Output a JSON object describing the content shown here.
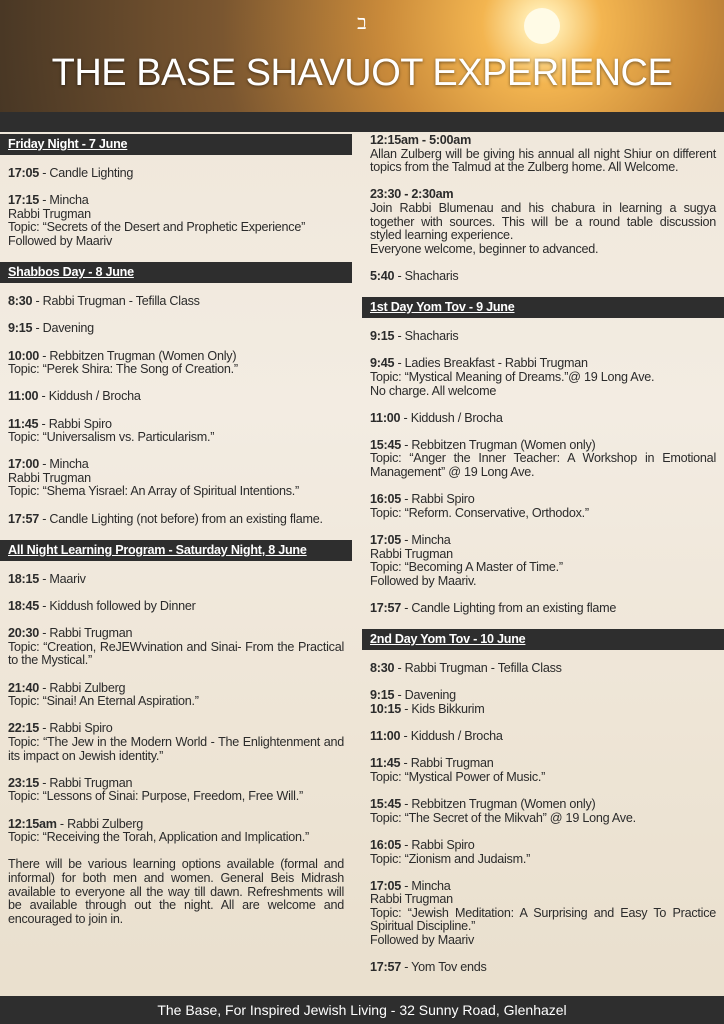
{
  "header": {
    "mark": "ב",
    "title": "THE BASE SHAVUOT EXPERIENCE"
  },
  "columns": [
    {
      "sections": [
        {
          "heading": "Friday Night - 7 June",
          "items": [
            {
              "lines": [
                {
                  "time": "17:05",
                  "text": " - Candle Lighting"
                }
              ]
            },
            {
              "lines": [
                {
                  "time": "17:15",
                  "text": " - Mincha"
                },
                {
                  "text": "Rabbi Trugman"
                },
                {
                  "text": "Topic: “Secrets of the Desert and Prophetic Experience”"
                },
                {
                  "text": "Followed by Maariv"
                }
              ]
            }
          ]
        },
        {
          "heading": "Shabbos Day - 8 June",
          "items": [
            {
              "lines": [
                {
                  "time": "8:30",
                  "text": " - Rabbi Trugman - Tefilla Class"
                }
              ]
            },
            {
              "lines": [
                {
                  "time": "9:15",
                  "text": " - Davening"
                }
              ]
            },
            {
              "lines": [
                {
                  "time": "10:00",
                  "text": " - Rebbitzen Trugman (Women Only)"
                },
                {
                  "text": "Topic: “Perek Shira: The Song of Creation.”"
                }
              ]
            },
            {
              "lines": [
                {
                  "time": "11:00",
                  "text": " - Kiddush / Brocha"
                }
              ]
            },
            {
              "lines": [
                {
                  "time": "11:45",
                  "text": " - Rabbi Spiro"
                },
                {
                  "text": "Topic: “Universalism vs. Particularism.”"
                }
              ]
            },
            {
              "lines": [
                {
                  "time": "17:00",
                  "text": " - Mincha"
                },
                {
                  "text": "Rabbi Trugman"
                },
                {
                  "text": "Topic: “Shema Yisrael: An Array of Spiritual Intentions.”"
                }
              ]
            },
            {
              "lines": [
                {
                  "time": "17:57",
                  "text": " - Candle Lighting (not before) from an existing flame."
                }
              ]
            }
          ]
        },
        {
          "heading": "All Night Learning Program - Saturday Night, 8 June",
          "items": [
            {
              "lines": [
                {
                  "time": "18:15",
                  "text": " - Maariv"
                }
              ]
            },
            {
              "lines": [
                {
                  "time": "18:45",
                  "text": " - Kiddush followed by Dinner"
                }
              ]
            },
            {
              "lines": [
                {
                  "time": "20:30",
                  "text": " - Rabbi Trugman"
                },
                {
                  "text": "Topic: “Creation, ReJEWvination and Sinai- From the Practical to the Mystical.”"
                }
              ]
            },
            {
              "lines": [
                {
                  "time": "21:40",
                  "text": " - Rabbi Zulberg"
                },
                {
                  "text": "Topic: “Sinai! An Eternal Aspiration.”"
                }
              ]
            },
            {
              "lines": [
                {
                  "time": "22:15",
                  "text": " - Rabbi Spiro"
                },
                {
                  "text": "Topic: “The Jew in the Modern World - The Enlightenment and its impact on Jewish identity.”"
                }
              ]
            },
            {
              "lines": [
                {
                  "time": "23:15",
                  "text": " - Rabbi Trugman"
                },
                {
                  "text": "Topic: “Lessons of Sinai: Purpose, Freedom, Free Will.”"
                }
              ]
            },
            {
              "lines": [
                {
                  "time": "12:15am",
                  "text": " - Rabbi Zulberg"
                },
                {
                  "text": "Topic: “Receiving the Torah, Application and Implication.”"
                }
              ]
            },
            {
              "lines": [
                {
                  "text": "There will be various learning options available (formal and informal) for both men and women. General Beis Midrash available to everyone all the way till dawn. Refreshments will be available through out the night. All are welcome and encouraged to join in."
                }
              ]
            }
          ]
        }
      ]
    },
    {
      "sections": [
        {
          "items": [
            {
              "lines": [
                {
                  "time": "12:15am - 5:00am"
                },
                {
                  "text": "Allan Zulberg will be giving his annual all night Shiur on different topics from the Talmud at the Zulberg home. All Welcome."
                }
              ]
            },
            {
              "lines": [
                {
                  "time": "23:30 - 2:30am"
                },
                {
                  "text": "Join Rabbi Blumenau and his chabura in learning a sugya together with sources. This will be a round table discussion styled learning experience."
                },
                {
                  "text": "Everyone welcome, beginner to advanced."
                }
              ]
            },
            {
              "lines": [
                {
                  "time": "5:40",
                  "text": " - Shacharis"
                }
              ]
            }
          ]
        },
        {
          "heading": "1st Day Yom Tov - 9 June",
          "items": [
            {
              "lines": [
                {
                  "time": "9:15",
                  "text": " - Shacharis"
                }
              ]
            },
            {
              "lines": [
                {
                  "time": "9:45",
                  "text": " - Ladies Breakfast - Rabbi Trugman"
                },
                {
                  "text": "Topic: “Mystical Meaning of Dreams.”@ 19 Long Ave."
                },
                {
                  "text": "No charge. All welcome"
                }
              ]
            },
            {
              "lines": [
                {
                  "time": "11:00",
                  "text": " - Kiddush / Brocha"
                }
              ]
            },
            {
              "lines": [
                {
                  "time": "15:45",
                  "text": " - Rebbitzen Trugman (Women only)"
                },
                {
                  "text": "Topic: “Anger the Inner Teacher: A Workshop in Emotional Management” @ 19 Long Ave."
                }
              ]
            },
            {
              "lines": [
                {
                  "time": "16:05",
                  "text": " - Rabbi Spiro"
                },
                {
                  "text": "Topic: “Reform. Conservative, Orthodox.”"
                }
              ]
            },
            {
              "lines": [
                {
                  "time": "17:05",
                  "text": " - Mincha"
                },
                {
                  "text": "Rabbi Trugman"
                },
                {
                  "text": "Topic: “Becoming A Master of Time.”"
                },
                {
                  "text": "Followed by Maariv."
                }
              ]
            },
            {
              "lines": [
                {
                  "time": "17:57",
                  "text": " - Candle Lighting from an existing flame"
                }
              ]
            }
          ]
        },
        {
          "heading": "2nd Day Yom Tov - 10 June",
          "items": [
            {
              "lines": [
                {
                  "time": "8:30",
                  "text": " - Rabbi Trugman - Tefilla Class"
                }
              ]
            },
            {
              "lines": [
                {
                  "time": "9:15",
                  "text": " - Davening"
                },
                {
                  "time": "10:15",
                  "text": " - Kids Bikkurim"
                }
              ]
            },
            {
              "lines": [
                {
                  "time": "11:00",
                  "text": " - Kiddush / Brocha"
                }
              ]
            },
            {
              "lines": [
                {
                  "time": "11:45",
                  "text": " - Rabbi Trugman"
                },
                {
                  "text": "Topic: “Mystical Power of Music.”"
                }
              ]
            },
            {
              "lines": [
                {
                  "time": "15:45",
                  "text": " - Rebbitzen Trugman (Women only)"
                },
                {
                  "text": "Topic: “The Secret of the Mikvah” @ 19 Long Ave."
                }
              ]
            },
            {
              "lines": [
                {
                  "time": "16:05",
                  "text": " - Rabbi Spiro"
                },
                {
                  "text": "Topic: “Zionism and Judaism.”"
                }
              ]
            },
            {
              "lines": [
                {
                  "time": "17:05",
                  "text": " - Mincha"
                },
                {
                  "text": "Rabbi Trugman"
                },
                {
                  "text": "Topic: “Jewish Meditation: A Surprising and Easy To Practice Spiritual Discipline.”"
                },
                {
                  "text": "Followed by Maariv"
                }
              ]
            },
            {
              "lines": [
                {
                  "time": "17:57",
                  "text": " - Yom Tov ends"
                }
              ]
            }
          ]
        }
      ]
    }
  ],
  "footer": "The Base, For Inspired Jewish Living - 32 Sunny Road, Glenhazel"
}
